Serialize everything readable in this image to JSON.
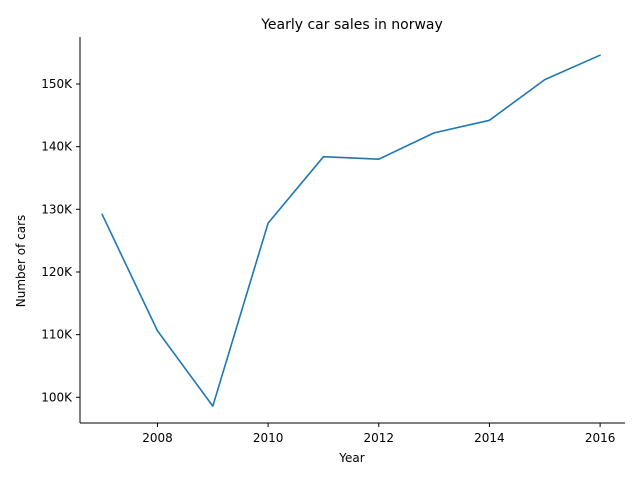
{
  "chart_data": {
    "type": "line",
    "title": "Yearly car sales in norway",
    "xlabel": "Year",
    "ylabel": "Number of cars",
    "x": [
      2007,
      2008,
      2009,
      2010,
      2011,
      2012,
      2013,
      2014,
      2015,
      2016
    ],
    "series": [
      {
        "values": [
          129200,
          110600,
          98600,
          127800,
          138400,
          138000,
          142200,
          144200,
          150700,
          154600
        ],
        "color": "#1f77b4"
      }
    ],
    "xlim": [
      2006.6,
      2016.45
    ],
    "ylim": [
      95900,
      157500
    ],
    "x_ticks": [
      2008,
      2010,
      2012,
      2014,
      2016
    ],
    "x_tick_labels": [
      "2008",
      "2010",
      "2012",
      "2014",
      "2016"
    ],
    "y_ticks": [
      100000,
      110000,
      120000,
      130000,
      140000,
      150000
    ],
    "y_tick_labels": [
      "100K",
      "110K",
      "120K",
      "130K",
      "140K",
      "150K"
    ],
    "grid": false,
    "legend": "none"
  }
}
